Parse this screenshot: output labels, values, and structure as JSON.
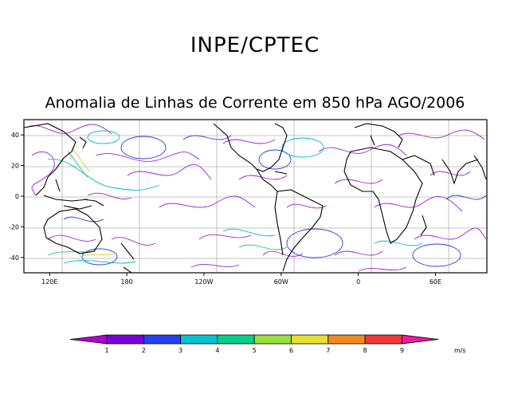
{
  "title": "INPE/CPTEC",
  "subtitle": "Anomalia de Linhas de Corrente em 850 hPa AGO/2006",
  "map": {
    "lat_ticks": [
      {
        "label": "40",
        "value": 40
      },
      {
        "label": "20",
        "value": 20
      },
      {
        "label": "0",
        "value": 0
      },
      {
        "label": "-20",
        "value": -20
      },
      {
        "label": "-40",
        "value": -40
      }
    ],
    "lon_ticks": [
      {
        "label": "120E",
        "value": 120
      },
      {
        "label": "180",
        "value": 180
      },
      {
        "label": "120W",
        "value": 240
      },
      {
        "label": "60W",
        "value": 300
      },
      {
        "label": "0",
        "value": 360
      },
      {
        "label": "60E",
        "value": 420
      }
    ],
    "lat_range": [
      -50,
      50
    ],
    "lon_range": [
      100,
      460
    ]
  },
  "colorbar": {
    "unit": "m/s",
    "labels": [
      "1",
      "2",
      "3",
      "4",
      "5",
      "6",
      "7",
      "8",
      "9"
    ],
    "colors": [
      "#b000d8",
      "#7a00dc",
      "#2440f0",
      "#00c4d0",
      "#00d08a",
      "#98e040",
      "#e6de30",
      "#f08a20",
      "#f03838",
      "#f0189c"
    ]
  }
}
